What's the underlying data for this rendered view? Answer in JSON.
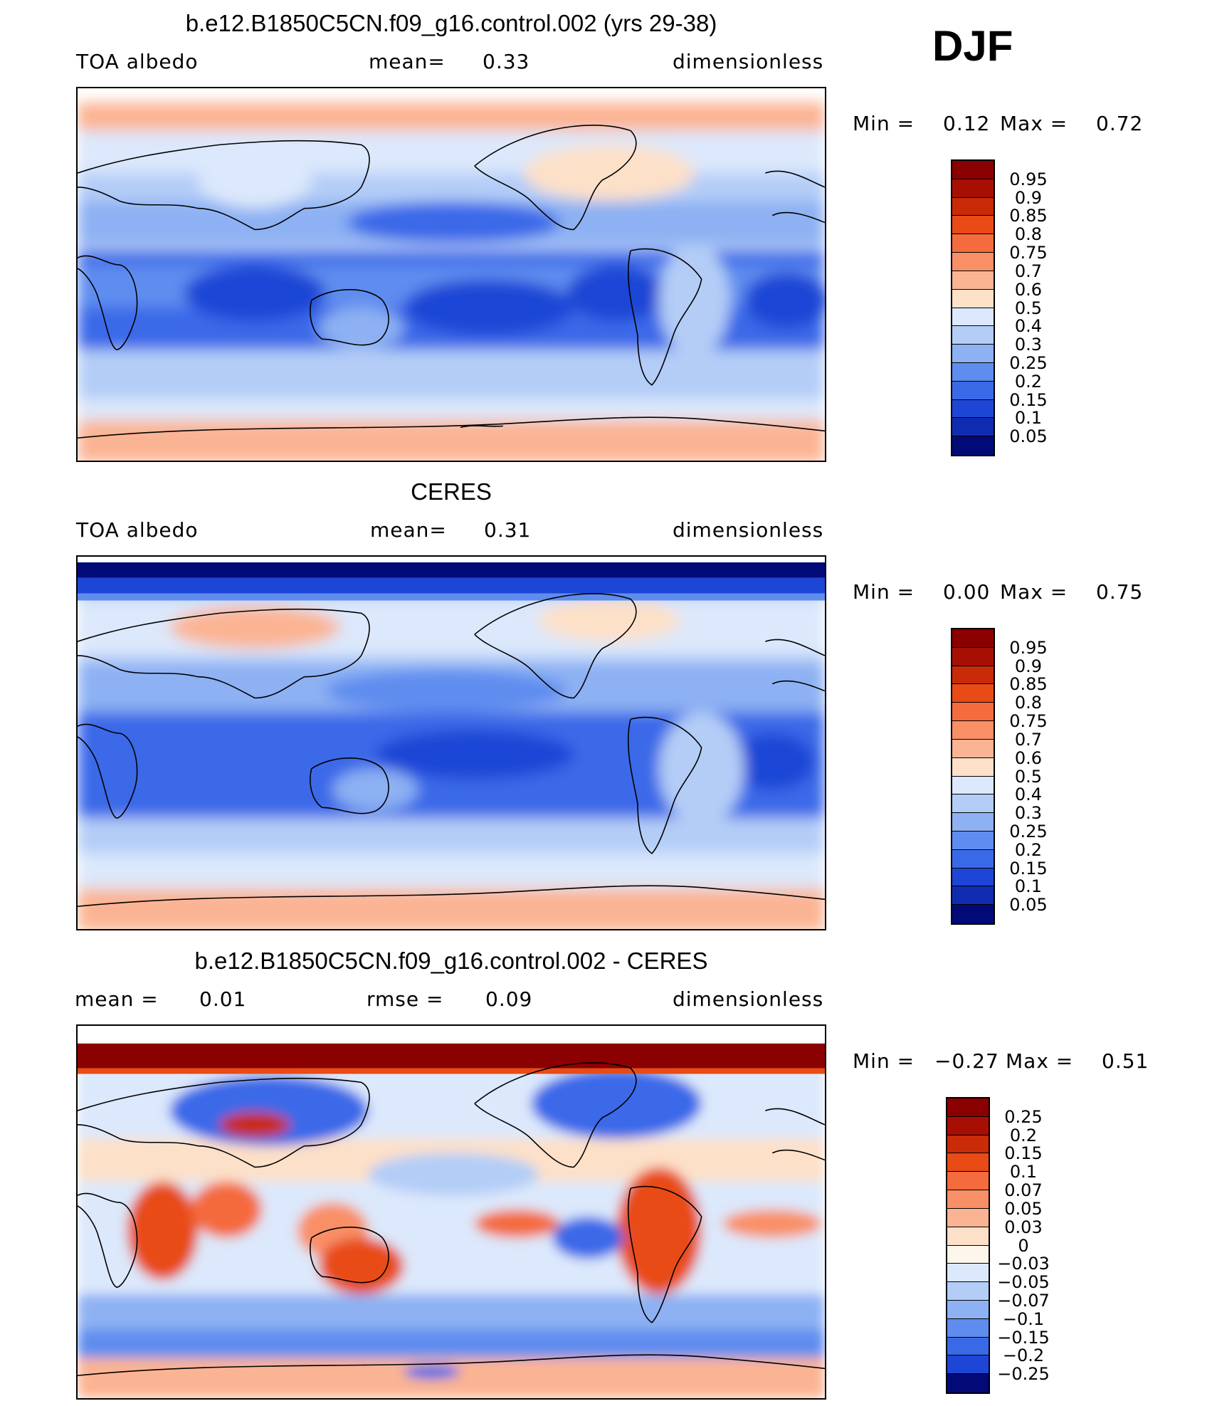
{
  "season": "DJF",
  "panels": [
    {
      "title": "b.e12.B1850C5CN.f09_g16.control.002 (yrs 29-38)",
      "left_label": "TOA albedo",
      "center_label": "mean=",
      "center_value": "0.33",
      "right_label": "dimensionless",
      "min_label": "Min =",
      "min_value": "0.12",
      "max_label": "Max =",
      "max_value": "0.72",
      "colorbar_labels": [
        "0.95",
        "0.9",
        "0.85",
        "0.8",
        "0.75",
        "0.7",
        "0.6",
        "0.5",
        "0.4",
        "0.3",
        "0.25",
        "0.2",
        "0.15",
        "0.1",
        "0.05"
      ],
      "colorbar_colors": [
        "#8b0000",
        "#a80f04",
        "#c92a08",
        "#e84b16",
        "#f46b3d",
        "#f98f66",
        "#fbb493",
        "#fde0c8",
        "#dce8fb",
        "#b4cdf7",
        "#8db1f3",
        "#5f8def",
        "#3a69e8",
        "#1d46d6",
        "#0f2cb0",
        "#020a78"
      ],
      "map_style": "model"
    },
    {
      "title": "CERES",
      "left_label": "TOA albedo",
      "center_label": "mean=",
      "center_value": "0.31",
      "right_label": "dimensionless",
      "min_label": "Min =",
      "min_value": "0.00",
      "max_label": "Max =",
      "max_value": "0.75",
      "colorbar_labels": [
        "0.95",
        "0.9",
        "0.85",
        "0.8",
        "0.75",
        "0.7",
        "0.6",
        "0.5",
        "0.4",
        "0.3",
        "0.25",
        "0.2",
        "0.15",
        "0.1",
        "0.05"
      ],
      "colorbar_colors": [
        "#8b0000",
        "#a80f04",
        "#c92a08",
        "#e84b16",
        "#f46b3d",
        "#f98f66",
        "#fbb493",
        "#fde0c8",
        "#dce8fb",
        "#b4cdf7",
        "#8db1f3",
        "#5f8def",
        "#3a69e8",
        "#1d46d6",
        "#0f2cb0",
        "#020a78"
      ],
      "map_style": "obs"
    },
    {
      "title": "b.e12.B1850C5CN.f09_g16.control.002 - CERES",
      "left_label": "mean =",
      "left_value": "0.01",
      "center_label": "rmse =",
      "center_value": "0.09",
      "right_label": "dimensionless",
      "min_label": "Min =",
      "min_value": "−0.27",
      "max_label": "Max =",
      "max_value": "0.51",
      "colorbar_labels": [
        "0.25",
        "0.2",
        "0.15",
        "0.1",
        "0.07",
        "0.05",
        "0.03",
        "0",
        "−0.03",
        "−0.05",
        "−0.07",
        "−0.1",
        "−0.15",
        "−0.2",
        "−0.25"
      ],
      "colorbar_colors": [
        "#8b0000",
        "#a80f04",
        "#c92a08",
        "#e84b16",
        "#f46b3d",
        "#f98f66",
        "#fbb493",
        "#fde0c8",
        "#fdf6ec",
        "#dce8fb",
        "#b4cdf7",
        "#8db1f3",
        "#5f8def",
        "#3a69e8",
        "#1d46d6",
        "#020a78"
      ],
      "map_style": "diff"
    }
  ]
}
